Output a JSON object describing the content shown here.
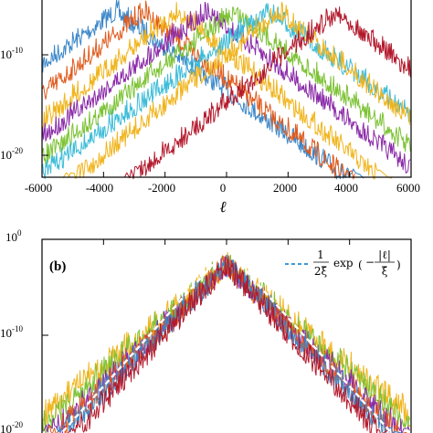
{
  "figure": {
    "panel_top": {
      "x_tick_labels": [
        "-6000",
        "-4000",
        "-2000",
        "0",
        "2000",
        "4000",
        "6000"
      ],
      "y_tick_labels": [
        {
          "base": "10",
          "exp": "-10"
        },
        {
          "base": "10",
          "exp": "-20"
        }
      ],
      "x_label": "ℓ"
    },
    "panel_bottom": {
      "panel_label": "(b)",
      "y_tick_labels": [
        {
          "base": "10",
          "exp": "0"
        },
        {
          "base": "10",
          "exp": "-10"
        },
        {
          "base": "10",
          "exp": "-20"
        }
      ],
      "legend": {
        "numerator": "1",
        "denominator": "2ξ̄",
        "text": "exp",
        "inner_numerator": "|ℓ|",
        "inner_denominator": "ξ̄"
      }
    }
  },
  "colors": {
    "blue": "#3a86c8",
    "orange": "#e05a1c",
    "yellow": "#f0b41c",
    "purple": "#8a2aa8",
    "green": "#7cc234",
    "cyan": "#3cbcd8",
    "red": "#b3192c",
    "fit": "#ffffff",
    "legend_line": "#3a9ad8"
  },
  "chart_data": [
    {
      "type": "line",
      "panel": "top",
      "xlim": [
        -6000,
        6000
      ],
      "y_log": true,
      "ylim_log10": [
        -22,
        0
      ],
      "series": [
        {
          "color": "blue",
          "center": -3600,
          "decay": 160,
          "peak_log10": 0
        },
        {
          "color": "orange",
          "center": -2700,
          "decay": 140,
          "peak_log10": 0
        },
        {
          "color": "yellow",
          "center": -1600,
          "decay": 140,
          "peak_log10": 0
        },
        {
          "color": "purple",
          "center": -650,
          "decay": 150,
          "peak_log10": 0
        },
        {
          "color": "green",
          "center": 250,
          "decay": 150,
          "peak_log10": 0
        },
        {
          "color": "cyan",
          "center": 1350,
          "decay": 160,
          "peak_log10": 0
        },
        {
          "color": "yellow",
          "center": 1700,
          "decay": 140,
          "peak_log10": 0
        },
        {
          "color": "red",
          "center": 3600,
          "decay": 140,
          "peak_log10": 0
        }
      ]
    },
    {
      "type": "line",
      "panel": "bottom",
      "xlim": [
        -6000,
        6000
      ],
      "y_log": true,
      "ylim_log10": [
        -20,
        0
      ],
      "series": [
        {
          "color": "yellow",
          "center": 0,
          "decay": 170,
          "peak_log10": -1
        },
        {
          "color": "green",
          "center": 0,
          "decay": 160,
          "peak_log10": -1
        },
        {
          "color": "purple",
          "center": 0,
          "decay": 145,
          "peak_log10": -1
        },
        {
          "color": "orange",
          "center": 0,
          "decay": 140,
          "peak_log10": -1
        },
        {
          "color": "blue",
          "center": 0,
          "decay": 135,
          "peak_log10": -1
        },
        {
          "color": "red",
          "center": 0,
          "decay": 125,
          "peak_log10": -1
        }
      ],
      "fit": {
        "label": "1/(2ξ̄) exp(−|ℓ|/ξ̄)",
        "decay": 125,
        "peak_log10": -1
      }
    }
  ]
}
